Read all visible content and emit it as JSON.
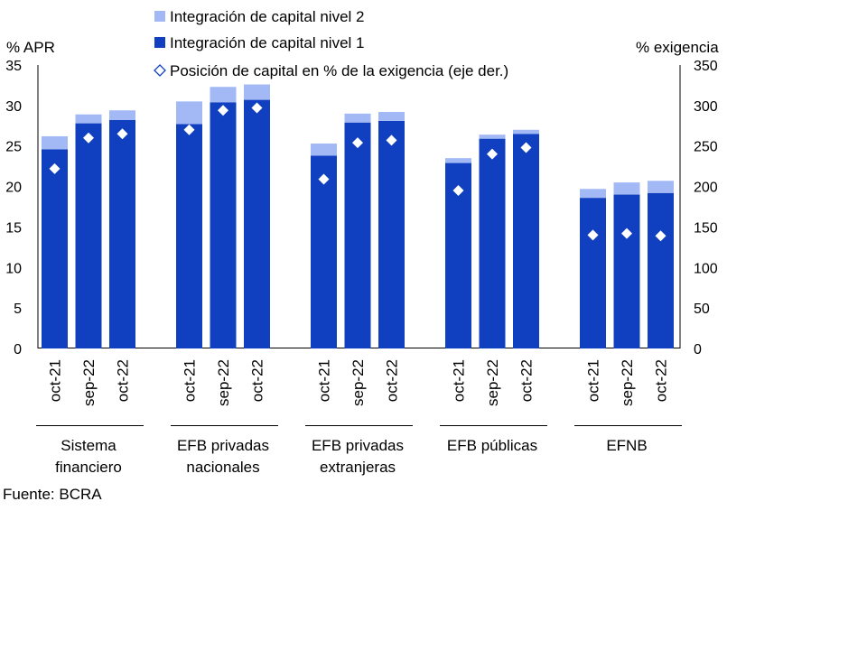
{
  "chart_data": {
    "type": "bar",
    "stacked": true,
    "yaxis_left": {
      "unit_label": "% APR",
      "ylim": [
        0,
        35
      ],
      "ticks": [
        "0",
        "5",
        "10",
        "15",
        "20",
        "25",
        "30",
        "35"
      ]
    },
    "yaxis_right": {
      "unit_label": "% exigencia",
      "ylim": [
        0,
        350
      ],
      "ticks": [
        "0",
        "50",
        "100",
        "150",
        "200",
        "250",
        "300",
        "350"
      ]
    },
    "groups": [
      {
        "label": "Sistema financiero",
        "label_lines": [
          "Sistema",
          "financiero"
        ],
        "categories": [
          "oct-21",
          "sep-22",
          "oct-22"
        ]
      },
      {
        "label": "EFB privadas nacionales",
        "label_lines": [
          "EFB privadas",
          "nacionales"
        ],
        "categories": [
          "oct-21",
          "sep-22",
          "oct-22"
        ]
      },
      {
        "label": "EFB privadas extranjeras",
        "label_lines": [
          "EFB privadas",
          "extranjeras"
        ],
        "categories": [
          "oct-21",
          "sep-22",
          "oct-22"
        ]
      },
      {
        "label": "EFB públicas",
        "label_lines": [
          "EFB públicas"
        ],
        "categories": [
          "oct-21",
          "sep-22",
          "oct-22"
        ]
      },
      {
        "label": "EFNB",
        "label_lines": [
          "EFNB"
        ],
        "categories": [
          "oct-21",
          "sep-22",
          "oct-22"
        ]
      }
    ],
    "series": [
      {
        "name": "Integración de capital nivel 2",
        "kind": "bar",
        "axis": "left",
        "color": "#a3b9f5",
        "values": [
          1.6,
          1.1,
          1.2,
          2.8,
          1.9,
          1.9,
          1.5,
          1.1,
          1.1,
          0.6,
          0.5,
          0.5,
          1.1,
          1.5,
          1.5
        ]
      },
      {
        "name": "Integración de capital nivel 1",
        "kind": "bar",
        "axis": "left",
        "color": "#1040c0",
        "values": [
          24.6,
          27.8,
          28.2,
          27.7,
          30.4,
          30.7,
          23.8,
          27.9,
          28.1,
          22.9,
          25.9,
          26.5,
          18.6,
          19.0,
          19.2
        ]
      },
      {
        "name": "Posición de capital en % de la exigencia (eje der.)",
        "kind": "marker",
        "axis": "right",
        "color": "#ffffff",
        "values": [
          222,
          260,
          265,
          270,
          294,
          297,
          209,
          254,
          257,
          195,
          240,
          248,
          140,
          142,
          139
        ]
      }
    ],
    "legend_position": "top"
  },
  "source": "Fuente: BCRA"
}
